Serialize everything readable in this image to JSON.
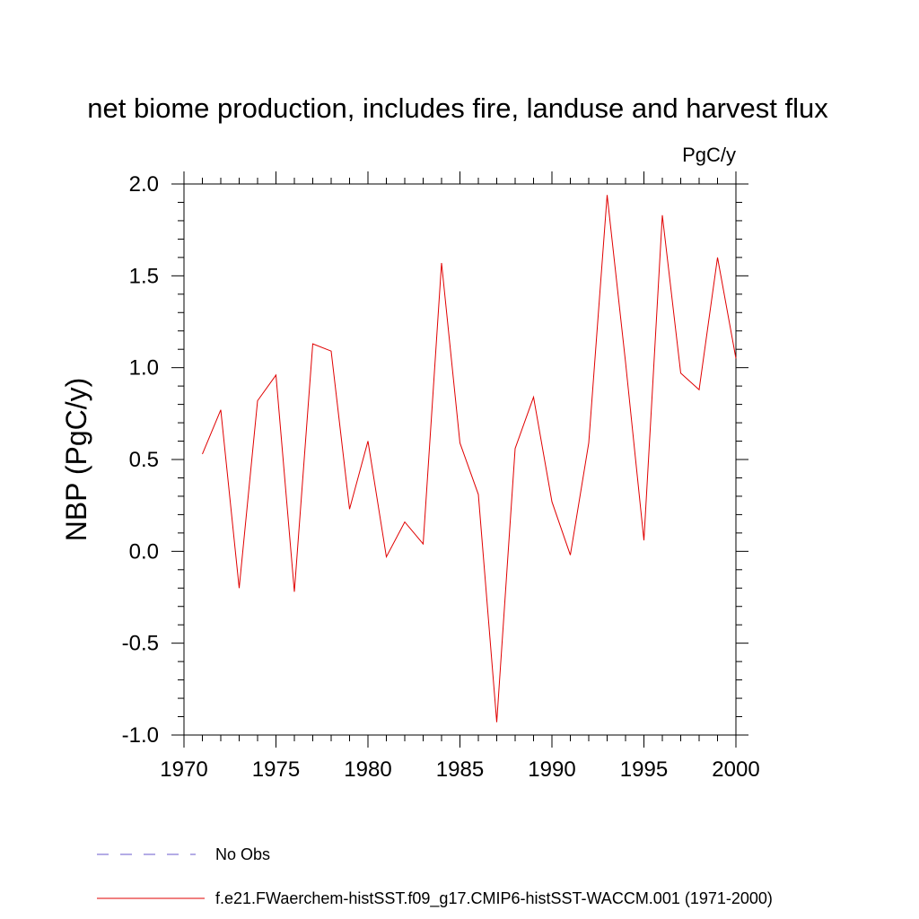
{
  "chart_data": {
    "type": "line",
    "title": "net biome production, includes fire, landuse and harvest flux",
    "units_label": "PgC/y",
    "ylabel": "NBP  (PgC/y)",
    "xlabel": "",
    "xlim": [
      1970,
      2000
    ],
    "ylim": [
      -1.0,
      2.0
    ],
    "x_ticks": [
      1970,
      1975,
      1980,
      1985,
      1990,
      1995,
      2000
    ],
    "y_ticks": [
      -1.0,
      -0.5,
      0.0,
      0.5,
      1.0,
      1.5,
      2.0
    ],
    "x_tick_labels": [
      "1970",
      "1975",
      "1980",
      "1985",
      "1990",
      "1995",
      "2000"
    ],
    "y_tick_labels": [
      "-1.0",
      "-0.5",
      "0.0",
      "0.5",
      "1.0",
      "1.5",
      "2.0"
    ],
    "grid": false,
    "legend_position": "bottom",
    "series": [
      {
        "name": "f.e21.FWaerchem-histSST.f09_g17.CMIP6-histSST-WACCM.001 (1971-2000)",
        "color": "#e00000",
        "style": "solid",
        "x": [
          1971,
          1972,
          1973,
          1974,
          1975,
          1976,
          1977,
          1978,
          1979,
          1980,
          1981,
          1982,
          1983,
          1984,
          1985,
          1986,
          1987,
          1988,
          1989,
          1990,
          1991,
          1992,
          1993,
          1994,
          1995,
          1996,
          1997,
          1998,
          1999,
          2000
        ],
        "y": [
          0.53,
          0.77,
          -0.2,
          0.82,
          0.96,
          -0.22,
          1.13,
          1.09,
          0.23,
          0.6,
          -0.03,
          0.16,
          0.04,
          1.57,
          0.59,
          0.31,
          -0.93,
          0.56,
          0.84,
          0.27,
          -0.02,
          0.59,
          1.94,
          1.03,
          0.06,
          1.83,
          0.97,
          0.88,
          1.6,
          1.05
        ]
      }
    ],
    "legend": [
      {
        "label": "No Obs",
        "color": "#6a5acd",
        "style": "dashed"
      },
      {
        "label": "f.e21.FWaerchem-histSST.f09_g17.CMIP6-histSST-WACCM.001 (1971-2000)",
        "color": "#e00000",
        "style": "solid"
      }
    ]
  }
}
